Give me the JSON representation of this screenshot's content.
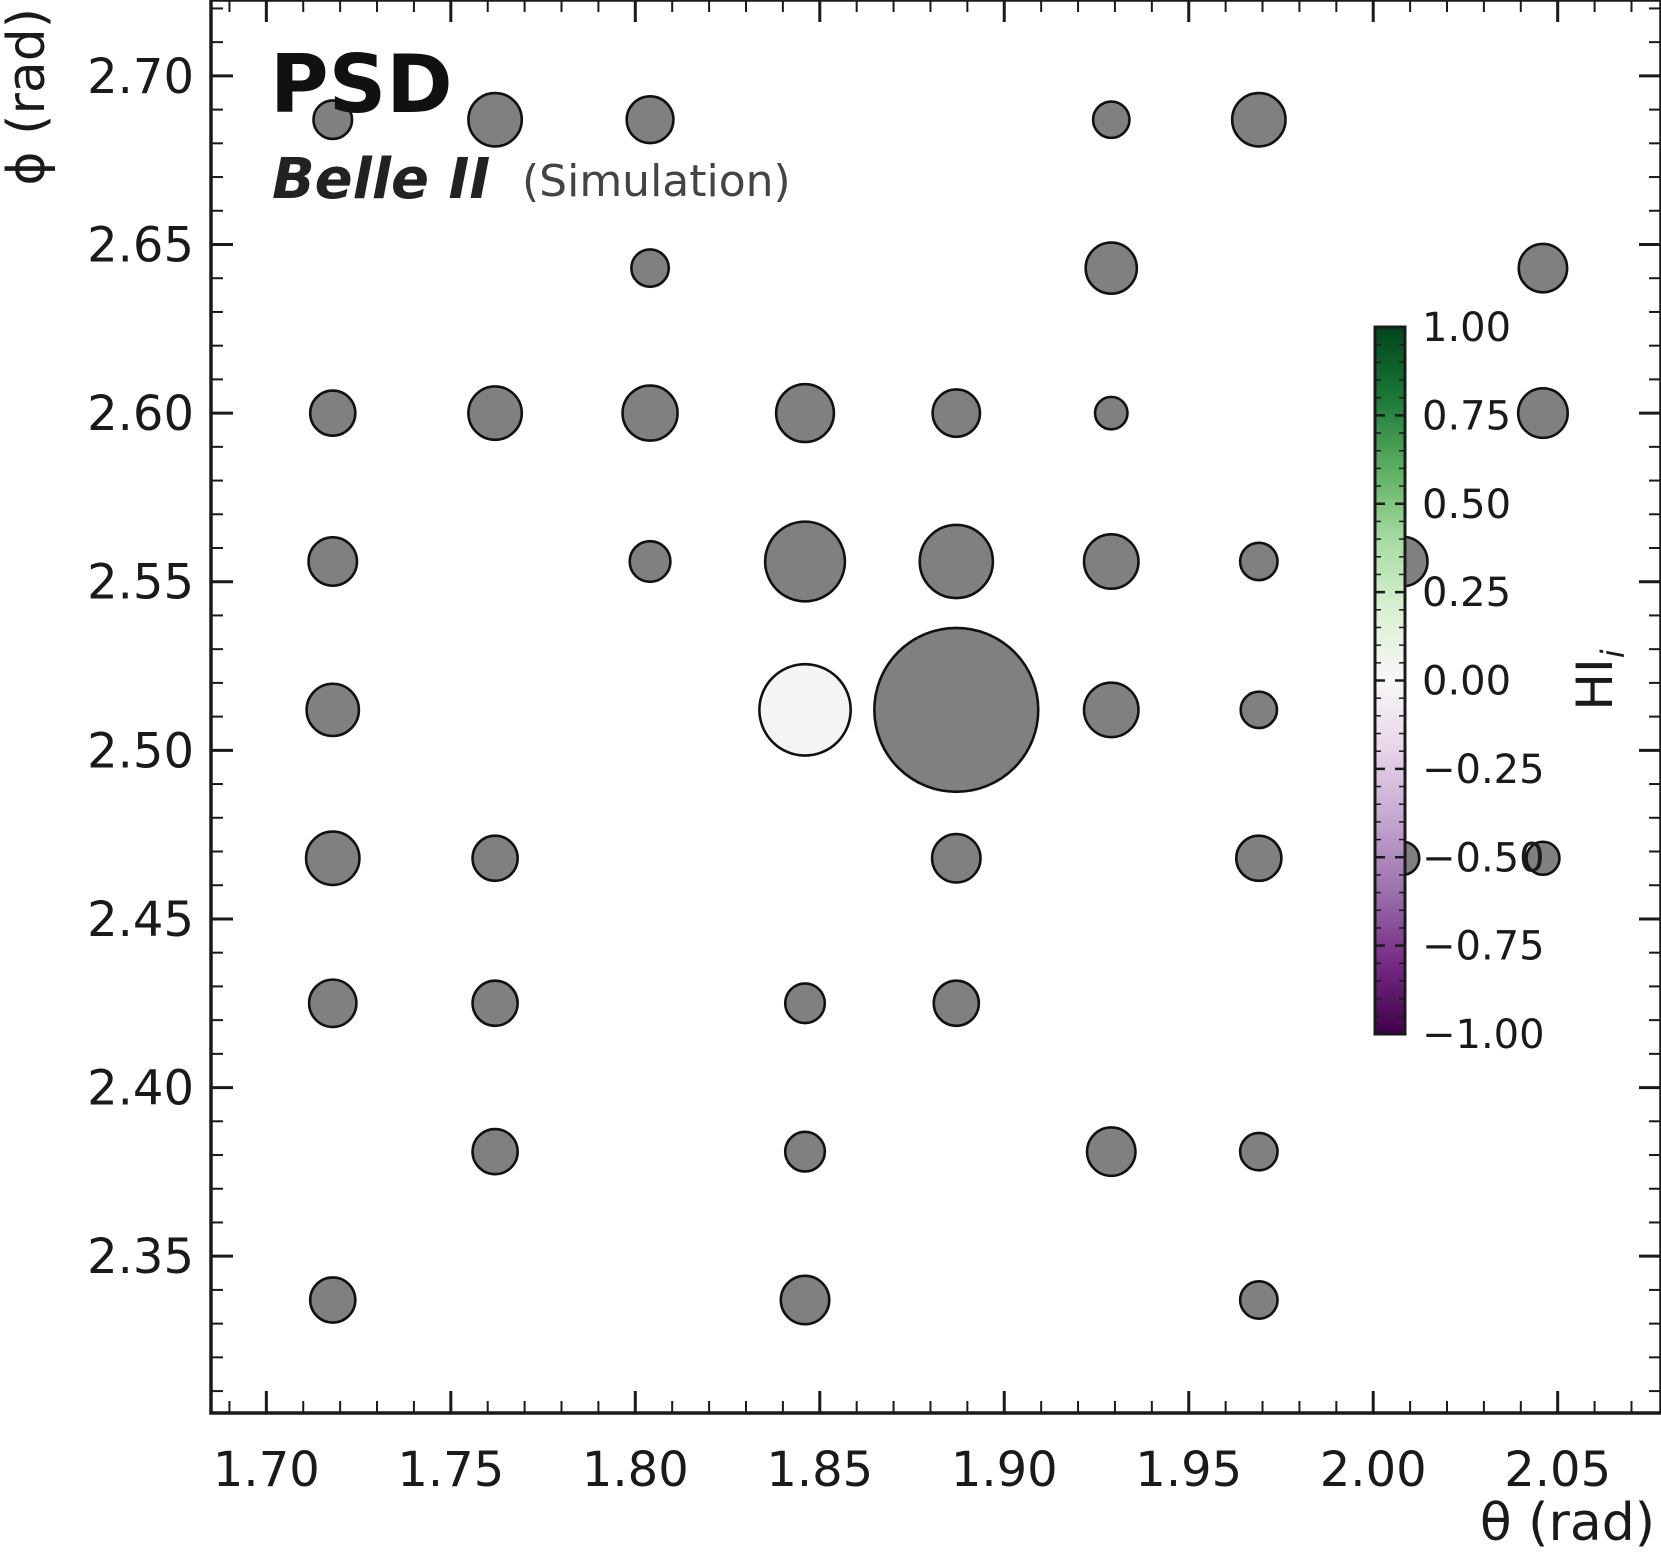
{
  "chart_data": {
    "type": "scatter",
    "title": "PSD",
    "subtitle_name": "Belle II",
    "subtitle_note": "(Simulation)",
    "xlabel": "θ (rad)",
    "ylabel": "ϕ (rad)",
    "xlim": [
      1.685,
      2.078
    ],
    "ylim": [
      2.3035,
      2.7225
    ],
    "xticks": [
      "1.70",
      "1.75",
      "1.80",
      "1.85",
      "1.90",
      "1.95",
      "2.00",
      "2.05"
    ],
    "yticks": [
      "2.35",
      "2.40",
      "2.45",
      "2.50",
      "2.55",
      "2.60",
      "2.65",
      "2.70"
    ],
    "colorbar": {
      "label": "HI",
      "label_sub": "i",
      "range": [
        -1,
        1
      ],
      "ticks": [
        "1.00",
        "0.75",
        "0.50",
        "0.25",
        "0.00",
        "−0.25",
        "−0.50",
        "−0.75",
        "−1.00"
      ],
      "colors": [
        "#40004b",
        "#762a83",
        "#9970ab",
        "#c2a5cf",
        "#e7d4e8",
        "#f7f7f7",
        "#d9f0d3",
        "#a6dba0",
        "#5aae61",
        "#1b7837",
        "#00441b"
      ]
    },
    "points": [
      {
        "x": 1.718,
        "y": 2.687,
        "size": 0.7,
        "color": "#808080"
      },
      {
        "x": 1.762,
        "y": 2.687,
        "size": 0.97,
        "color": "#808080"
      },
      {
        "x": 1.804,
        "y": 2.687,
        "size": 0.85,
        "color": "#808080"
      },
      {
        "x": 1.929,
        "y": 2.687,
        "size": 0.66,
        "color": "#808080"
      },
      {
        "x": 1.969,
        "y": 2.687,
        "size": 0.97,
        "color": "#808080"
      },
      {
        "x": 1.804,
        "y": 2.643,
        "size": 0.68,
        "color": "#808080"
      },
      {
        "x": 1.929,
        "y": 2.643,
        "size": 0.93,
        "color": "#808080"
      },
      {
        "x": 2.046,
        "y": 2.643,
        "size": 0.88,
        "color": "#808080"
      },
      {
        "x": 1.718,
        "y": 2.6,
        "size": 0.82,
        "color": "#808080"
      },
      {
        "x": 1.762,
        "y": 2.6,
        "size": 0.97,
        "color": "#808080"
      },
      {
        "x": 1.804,
        "y": 2.6,
        "size": 1.0,
        "color": "#808080"
      },
      {
        "x": 1.846,
        "y": 2.6,
        "size": 1.05,
        "color": "#808080"
      },
      {
        "x": 1.887,
        "y": 2.6,
        "size": 0.86,
        "color": "#808080"
      },
      {
        "x": 1.929,
        "y": 2.6,
        "size": 0.59,
        "color": "#808080"
      },
      {
        "x": 2.046,
        "y": 2.6,
        "size": 0.9,
        "color": "#808080"
      },
      {
        "x": 1.718,
        "y": 2.556,
        "size": 0.88,
        "color": "#808080"
      },
      {
        "x": 1.804,
        "y": 2.556,
        "size": 0.74,
        "color": "#808080"
      },
      {
        "x": 1.846,
        "y": 2.556,
        "size": 1.45,
        "color": "#808080"
      },
      {
        "x": 1.887,
        "y": 2.556,
        "size": 1.33,
        "color": "#808080"
      },
      {
        "x": 1.929,
        "y": 2.556,
        "size": 0.99,
        "color": "#808080"
      },
      {
        "x": 1.969,
        "y": 2.556,
        "size": 0.68,
        "color": "#808080"
      },
      {
        "x": 2.008,
        "y": 2.556,
        "size": 0.9,
        "color": "#808080"
      },
      {
        "x": 1.718,
        "y": 2.512,
        "size": 0.95,
        "color": "#808080"
      },
      {
        "x": 1.846,
        "y": 2.512,
        "size": 1.66,
        "color": "#f4f4f4"
      },
      {
        "x": 1.887,
        "y": 2.512,
        "size": 2.98,
        "color": "#808080"
      },
      {
        "x": 1.929,
        "y": 2.512,
        "size": 0.99,
        "color": "#808080"
      },
      {
        "x": 1.969,
        "y": 2.512,
        "size": 0.66,
        "color": "#808080"
      },
      {
        "x": 1.718,
        "y": 2.468,
        "size": 0.97,
        "color": "#808080"
      },
      {
        "x": 1.762,
        "y": 2.468,
        "size": 0.82,
        "color": "#808080"
      },
      {
        "x": 1.887,
        "y": 2.468,
        "size": 0.88,
        "color": "#808080"
      },
      {
        "x": 1.969,
        "y": 2.468,
        "size": 0.82,
        "color": "#808080"
      },
      {
        "x": 2.008,
        "y": 2.468,
        "size": 0.6,
        "color": "#808080"
      },
      {
        "x": 2.046,
        "y": 2.468,
        "size": 0.6,
        "color": "#808080"
      },
      {
        "x": 1.718,
        "y": 2.425,
        "size": 0.86,
        "color": "#808080"
      },
      {
        "x": 1.762,
        "y": 2.425,
        "size": 0.82,
        "color": "#808080"
      },
      {
        "x": 1.846,
        "y": 2.425,
        "size": 0.72,
        "color": "#808080"
      },
      {
        "x": 1.887,
        "y": 2.425,
        "size": 0.82,
        "color": "#808080"
      },
      {
        "x": 1.762,
        "y": 2.381,
        "size": 0.82,
        "color": "#808080"
      },
      {
        "x": 1.846,
        "y": 2.381,
        "size": 0.72,
        "color": "#808080"
      },
      {
        "x": 1.929,
        "y": 2.381,
        "size": 0.88,
        "color": "#808080"
      },
      {
        "x": 1.969,
        "y": 2.381,
        "size": 0.68,
        "color": "#808080"
      },
      {
        "x": 1.718,
        "y": 2.337,
        "size": 0.82,
        "color": "#808080"
      },
      {
        "x": 1.846,
        "y": 2.337,
        "size": 0.88,
        "color": "#808080"
      },
      {
        "x": 1.969,
        "y": 2.337,
        "size": 0.68,
        "color": "#808080"
      }
    ]
  }
}
